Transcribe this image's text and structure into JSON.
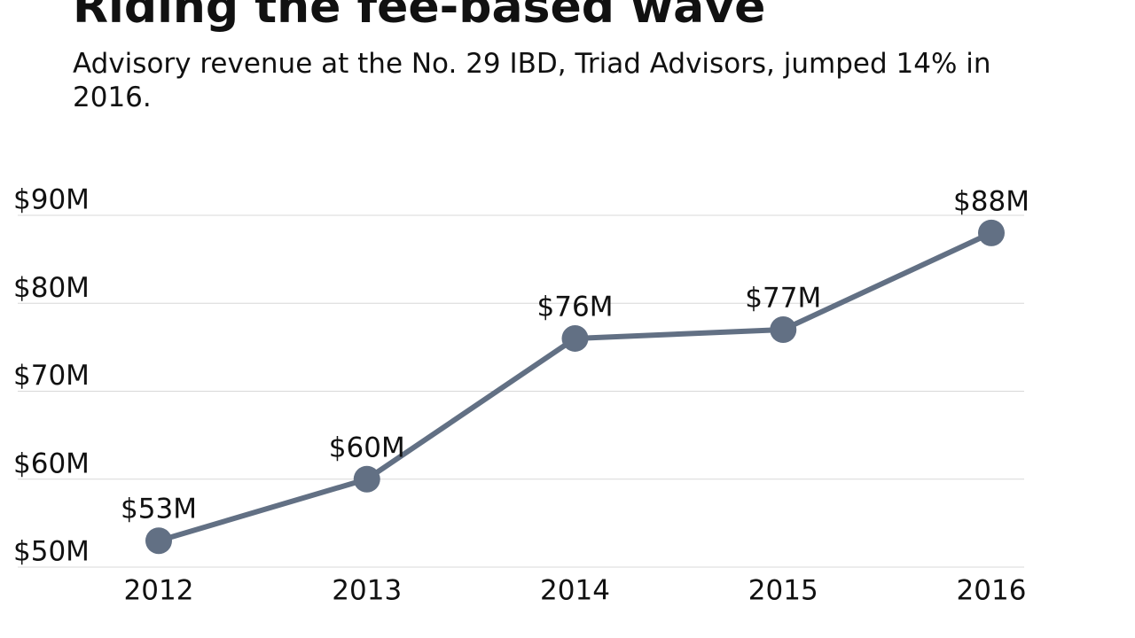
{
  "chart_data": {
    "type": "line",
    "title": "Riding the fee-based wave",
    "subtitle": "Advisory revenue at the No. 29 IBD, Triad Advisors, jumped 14% in 2016.",
    "categories": [
      "2012",
      "2013",
      "2014",
      "2015",
      "2016"
    ],
    "series": [
      {
        "name": "Advisory revenue",
        "color": "#627084",
        "values": [
          53,
          60,
          76,
          77,
          88
        ],
        "value_labels": [
          "$53M",
          "$60M",
          "$76M",
          "$77M",
          "$88M"
        ]
      }
    ],
    "ylim": [
      50,
      90
    ],
    "yticks": [
      {
        "value": 50,
        "label": "$50M"
      },
      {
        "value": 60,
        "label": "$60M"
      },
      {
        "value": 70,
        "label": "$70M"
      },
      {
        "value": 80,
        "label": "$80M"
      },
      {
        "value": 90,
        "label": "$90M"
      }
    ],
    "grid": true
  }
}
